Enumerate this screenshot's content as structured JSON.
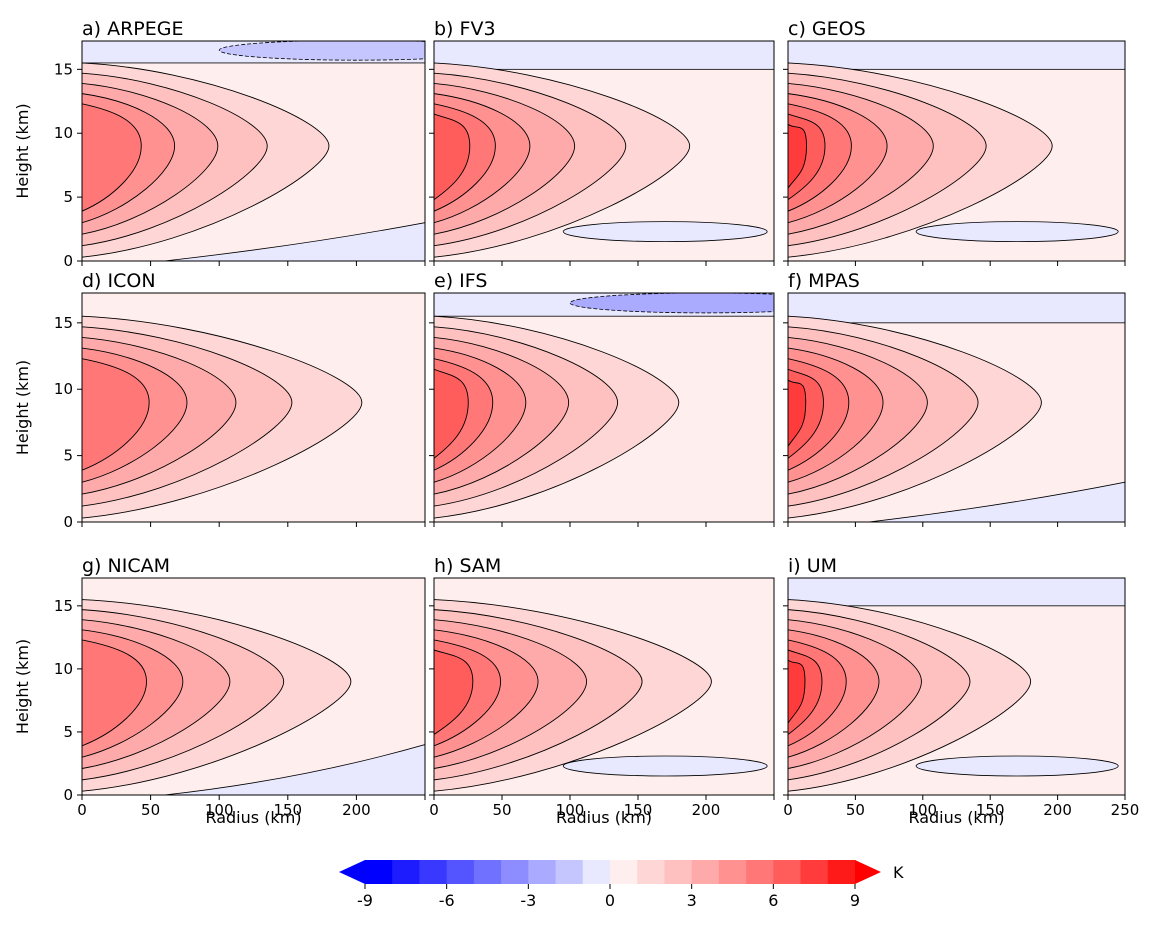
{
  "chart_data": {
    "type": "contour",
    "panels": [
      {
        "title": "a) ARPEGE"
      },
      {
        "title": "b) FV3"
      },
      {
        "title": "c) GEOS"
      },
      {
        "title": "d) ICON"
      },
      {
        "title": "e) IFS"
      },
      {
        "title": "f) MPAS"
      },
      {
        "title": "g) NICAM"
      },
      {
        "title": "h) SAM"
      },
      {
        "title": "i) UM"
      }
    ],
    "xlabel": "Radius (km)",
    "ylabel": "Height (km)",
    "xlim": [
      0,
      250
    ],
    "ylim": [
      0,
      18
    ],
    "xticks": [
      0,
      50,
      100,
      150,
      200,
      250
    ],
    "yticks": [
      0,
      5,
      10,
      15
    ],
    "colorbar": {
      "label": "K",
      "levels": [
        -9,
        9
      ],
      "ticks": [
        -9,
        -6,
        -3,
        0,
        3,
        6,
        9
      ],
      "colors": [
        "#0000ff",
        "#1c1cff",
        "#3838ff",
        "#5555ff",
        "#7171ff",
        "#8d8dff",
        "#aaaaff",
        "#c6c6ff",
        "#e8e8ff",
        "#ffeeee",
        "#ffd6d6",
        "#ffc0c0",
        "#ffaaaa",
        "#ff9191",
        "#ff7777",
        "#ff5c5c",
        "#ff3b3b",
        "#ff1a1a"
      ],
      "extend_colors": [
        "#0000ff",
        "#ff0000"
      ]
    }
  }
}
